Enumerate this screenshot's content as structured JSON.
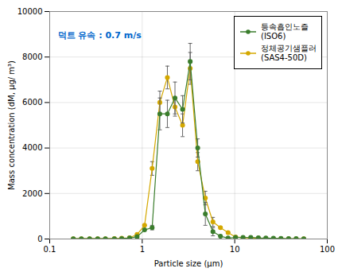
{
  "chart_data": {
    "type": "line",
    "xlabel": "Particle size (μm)",
    "ylabel": "Mass concentration (dM, μg/ m³)",
    "annotations": [
      {
        "text": "덕트 유속 : 0.7 m/s",
        "color": "#0066cc"
      }
    ],
    "log": "x",
    "grid": true,
    "legend": "top-right",
    "marker": "circle",
    "line_style": "solid",
    "xlim": [
      0.1,
      100
    ],
    "xticks": [
      0.1,
      1,
      10,
      100
    ],
    "ylim": [
      0,
      10000
    ],
    "yticks": [
      0,
      2000,
      4000,
      6000,
      8000,
      10000
    ],
    "x": [
      0.18,
      0.22,
      0.27,
      0.33,
      0.4,
      0.5,
      0.6,
      0.73,
      0.88,
      1.06,
      1.28,
      1.55,
      1.87,
      2.26,
      2.73,
      3.3,
      3.98,
      4.81,
      5.81,
      7.01,
      8.47,
      10.2,
      12.3,
      14.9,
      18.0,
      21.7,
      26.2,
      31.6,
      38.2,
      46.1,
      55.7
    ],
    "series": [
      {
        "name": "등속흡인노즐\n(ISO6)",
        "color": "#3a7d2c",
        "values": [
          10,
          10,
          10,
          10,
          10,
          10,
          20,
          40,
          100,
          400,
          500,
          5500,
          5500,
          6200,
          5700,
          7800,
          4000,
          1100,
          320,
          120,
          40,
          70,
          70,
          70,
          50,
          40,
          30,
          25,
          15,
          12,
          8
        ],
        "yerr": [
          0,
          0,
          0,
          0,
          0,
          0,
          0,
          0,
          0,
          0,
          100,
          700,
          600,
          700,
          600,
          800,
          400,
          500,
          180,
          0,
          0,
          0,
          0,
          0,
          0,
          0,
          0,
          0,
          0,
          0,
          0
        ]
      },
      {
        "name": "정체공기샘플러\n(SAS4-50D)",
        "color": "#d4a800",
        "values": [
          10,
          10,
          10,
          10,
          10,
          20,
          30,
          50,
          200,
          600,
          3100,
          6000,
          7100,
          5800,
          5000,
          7500,
          3400,
          1800,
          750,
          500,
          280,
          90,
          55,
          45,
          35,
          25,
          18,
          12,
          8,
          6,
          4
        ],
        "yerr": [
          0,
          0,
          0,
          0,
          0,
          0,
          0,
          0,
          0,
          0,
          300,
          500,
          500,
          400,
          500,
          700,
          400,
          300,
          200,
          0,
          0,
          0,
          0,
          0,
          0,
          0,
          0,
          0,
          0,
          0,
          0
        ]
      }
    ]
  }
}
